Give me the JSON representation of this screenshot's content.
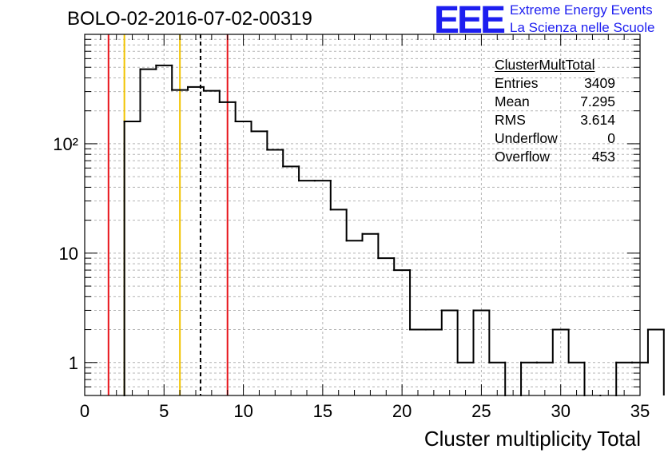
{
  "header": {
    "title": "BOLO-02-2016-07-02-00319"
  },
  "logo": {
    "mark": "EEE",
    "line1": "Extreme Energy Events",
    "line2": "La Scienza nelle Scuole",
    "color": "#1d1ef0"
  },
  "stats": {
    "name": "ClusterMultTotal",
    "rows": [
      {
        "key": "Entries",
        "value": "3409"
      },
      {
        "key": "Mean",
        "value": "7.295"
      },
      {
        "key": "RMS",
        "value": "3.614"
      },
      {
        "key": "Underflow",
        "value": "0"
      },
      {
        "key": "Overflow",
        "value": "453"
      }
    ]
  },
  "chart_data": {
    "type": "histogram",
    "title": "BOLO-02-2016-07-02-00319",
    "xlabel": "Cluster multiplicity Total",
    "ylabel": "",
    "xlim": [
      0,
      35
    ],
    "ylim": [
      0.5,
      1000
    ],
    "y_scale": "log",
    "grid": true,
    "bin_width": 1,
    "x_ticks": [
      "0",
      "5",
      "10",
      "15",
      "20",
      "25",
      "30",
      "35"
    ],
    "y_ticks": [
      {
        "value": 1,
        "label": "1"
      },
      {
        "value": 10,
        "label": "10"
      },
      {
        "value": 100,
        "label": "10²"
      }
    ],
    "bin_edges_start": 2.5,
    "counts": [
      160,
      480,
      520,
      310,
      330,
      305,
      240,
      160,
      130,
      88,
      62,
      46,
      46,
      25,
      13,
      15,
      9,
      7,
      2,
      2,
      3,
      1,
      3,
      1,
      0,
      1,
      1,
      2,
      1,
      0,
      0,
      1,
      1,
      2
    ],
    "vertical_lines": [
      {
        "x": 1.5,
        "color": "#e8151b",
        "style": "solid"
      },
      {
        "x": 2.5,
        "color": "#f2c300",
        "style": "solid"
      },
      {
        "x": 6.0,
        "color": "#f2c300",
        "style": "solid"
      },
      {
        "x": 7.3,
        "color": "#000000",
        "style": "dashed"
      },
      {
        "x": 9.0,
        "color": "#e8151b",
        "style": "solid"
      }
    ]
  }
}
